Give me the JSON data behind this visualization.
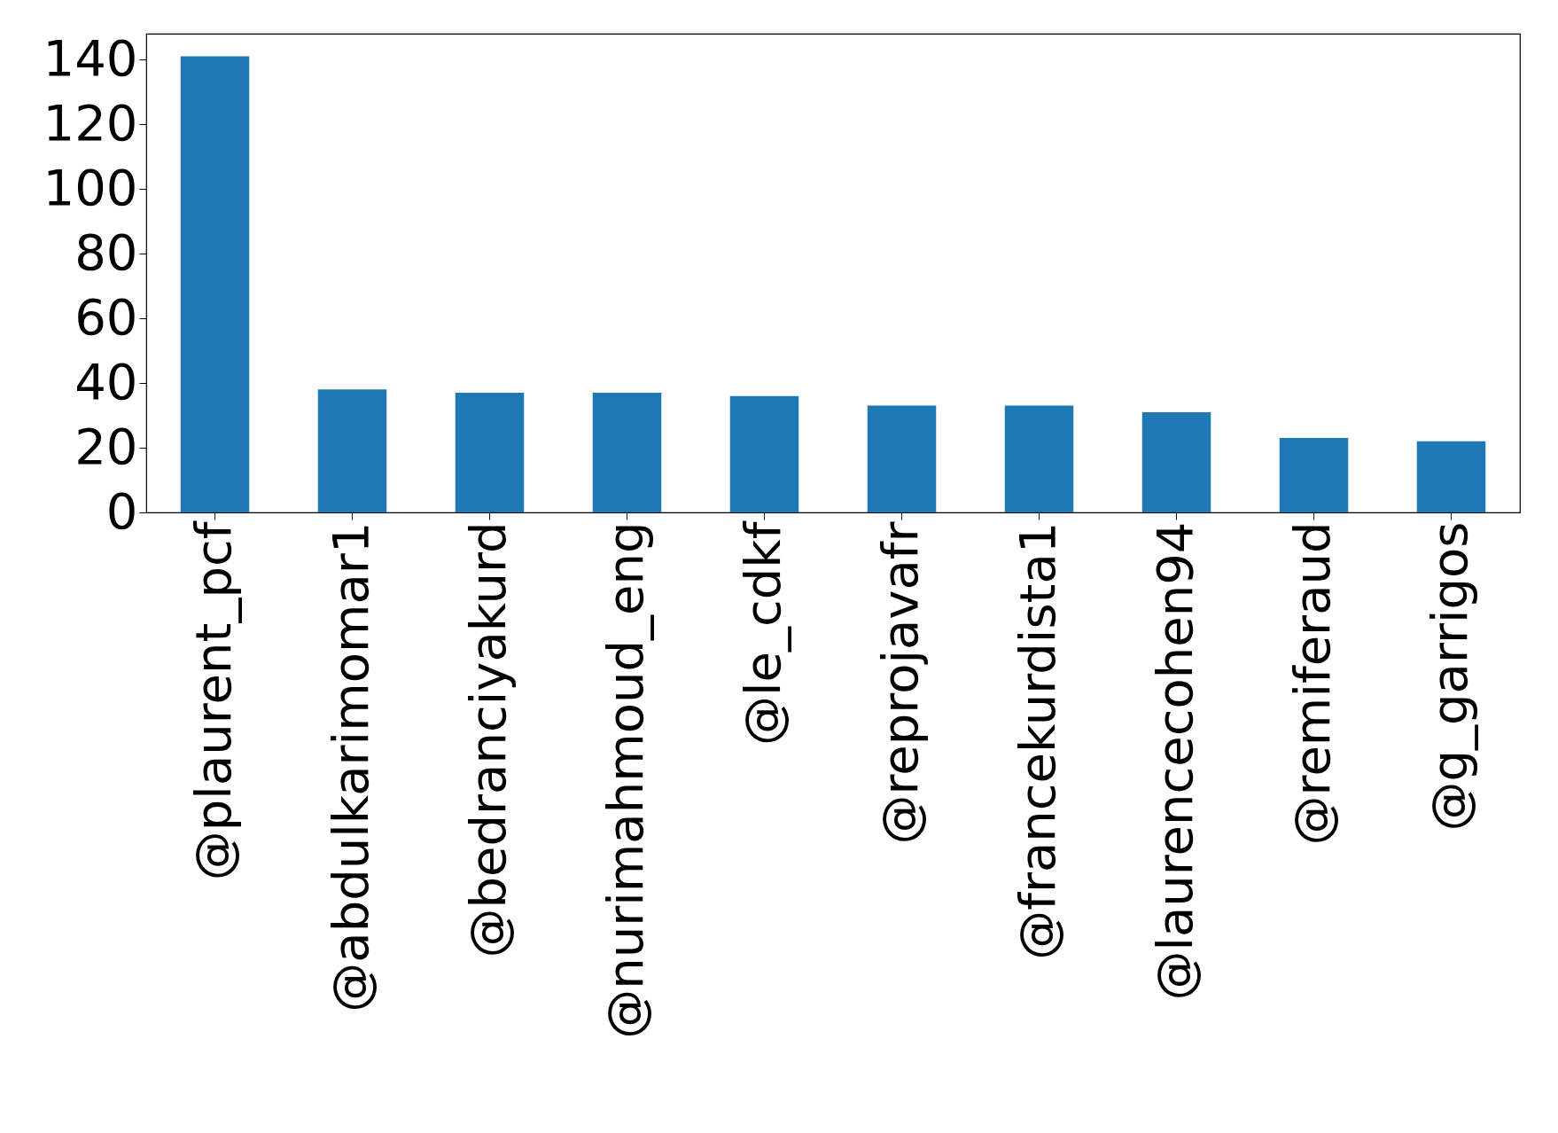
{
  "chart_data": {
    "type": "bar",
    "categories": [
      "@plaurent_pcf",
      "@abdulkarimomar1",
      "@bedranciyakurd",
      "@nurimahmoud_eng",
      "@le_cdkf",
      "@reprojavafr",
      "@francekurdista1",
      "@laurencecohen94",
      "@remiferaud",
      "@g_garrigos"
    ],
    "values": [
      141,
      38,
      37,
      37,
      36,
      33,
      33,
      31,
      23,
      22
    ],
    "color": "#1f77b4",
    "ylim": [
      0,
      148
    ],
    "yticks": [
      0,
      20,
      40,
      60,
      80,
      100,
      120,
      140
    ],
    "grid": false
  }
}
